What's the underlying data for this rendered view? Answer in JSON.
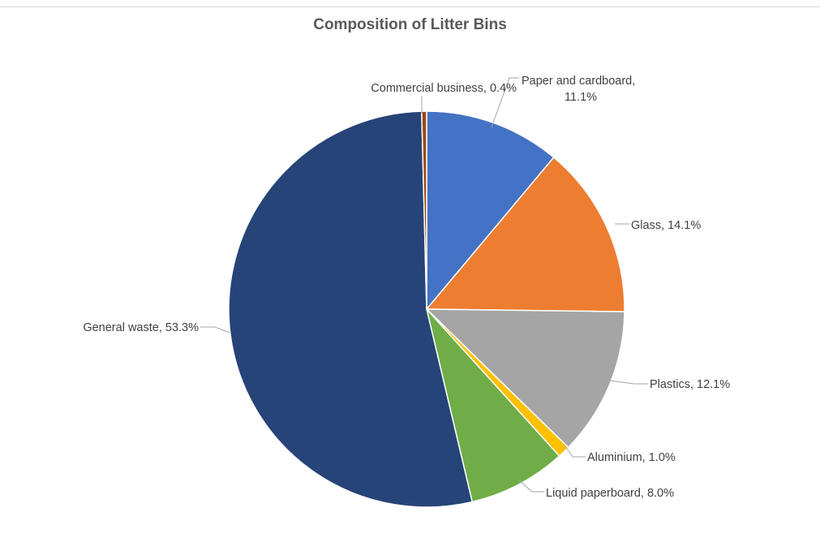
{
  "chart_data": {
    "type": "pie",
    "title": "Composition of Litter Bins",
    "slices": [
      {
        "label": "Paper and cardboard",
        "value": 11.1,
        "value_label": "11.1%",
        "color": "#4472c4"
      },
      {
        "label": "Glass",
        "value": 14.1,
        "value_label": "14.1%",
        "color": "#ed7d31"
      },
      {
        "label": "Plastics",
        "value": 12.1,
        "value_label": "12.1%",
        "color": "#a5a5a5"
      },
      {
        "label": "Aluminium",
        "value": 1.0,
        "value_label": "1.0%",
        "color": "#ffc000"
      },
      {
        "label": "Liquid paperboard",
        "value": 8.0,
        "value_label": "8.0%",
        "color": "#70ad47"
      },
      {
        "label": "General waste",
        "value": 53.3,
        "value_label": "53.3%",
        "color": "#264478"
      },
      {
        "label": "Commercial business",
        "value": 0.4,
        "value_label": "0.4%",
        "color": "#9e480e"
      }
    ],
    "start_angle": "12 o'clock",
    "direction": "clockwise",
    "data_labels": "category name and percentage, outside with leader lines"
  }
}
